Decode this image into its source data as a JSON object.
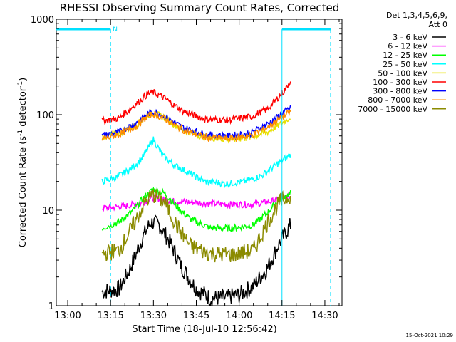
{
  "chart_data": {
    "type": "line",
    "title": "RHESSI Observing Summary Count Rates, Corrected",
    "xlabel": "Start Time (18-Jul-10 12:56:42)",
    "ylabel_parts": [
      "Corrected Count Rate (s",
      "-1",
      " detector",
      "-1",
      ")"
    ],
    "ylabel": "Corrected Count Rate (s-1 detector-1)",
    "y_scale": "log",
    "ylim": [
      1,
      1000
    ],
    "xlim": [
      "12:56",
      "14:36"
    ],
    "x_ticks": [
      "13:00",
      "13:15",
      "13:30",
      "13:45",
      "14:00",
      "14:15",
      "14:30"
    ],
    "y_ticks": [
      "1",
      "10",
      "100",
      "1000"
    ],
    "legend_header": [
      "Det 1,3,4,5,6,9,",
      "Att 0"
    ],
    "legend_position": "right",
    "series": [
      {
        "name": "3 - 6 keV",
        "color": "#000000",
        "x": [
          "13:12",
          "13:18",
          "13:22",
          "13:26",
          "13:29",
          "13:32",
          "13:36",
          "13:40",
          "13:45",
          "13:50",
          "13:55",
          "14:00",
          "14:05",
          "14:10",
          "14:14",
          "14:18"
        ],
        "y": [
          1.4,
          1.5,
          2.5,
          5,
          7.5,
          7,
          4.5,
          2.5,
          1.5,
          1.2,
          1.2,
          1.3,
          1.6,
          2.5,
          4.5,
          7
        ]
      },
      {
        "name": "6 - 12 keV",
        "color": "#ff00ff",
        "x": [
          "13:12",
          "13:20",
          "13:26",
          "13:30",
          "13:36",
          "13:45",
          "13:55",
          "14:05",
          "14:12",
          "14:18"
        ],
        "y": [
          10.5,
          11,
          12,
          13.5,
          12.5,
          12,
          11.5,
          11.5,
          12.5,
          14
        ]
      },
      {
        "name": "12 - 25 keV",
        "color": "#00ff00",
        "x": [
          "13:12",
          "13:18",
          "13:23",
          "13:27",
          "13:30",
          "13:34",
          "13:38",
          "13:43",
          "13:50",
          "13:58",
          "14:05",
          "14:10",
          "14:14",
          "14:18"
        ],
        "y": [
          6.5,
          7.5,
          10,
          14,
          16.5,
          15,
          11,
          8,
          6.5,
          6.5,
          7,
          9.5,
          13,
          15
        ]
      },
      {
        "name": "25 - 50 keV",
        "color": "#00ffff",
        "x": [
          "13:12",
          "13:17",
          "13:22",
          "13:26",
          "13:30",
          "13:33",
          "13:37",
          "13:42",
          "13:48",
          "13:55",
          "14:02",
          "14:08",
          "14:13",
          "14:18"
        ],
        "y": [
          20,
          22,
          27,
          35,
          55,
          38,
          30,
          25,
          20,
          19,
          20,
          23,
          30,
          38
        ]
      },
      {
        "name": "50 - 100 keV",
        "color": "#e8e000",
        "x": [
          "13:12",
          "13:18",
          "13:24",
          "13:28",
          "13:30",
          "13:34",
          "13:40",
          "13:48",
          "13:56",
          "14:04",
          "14:10",
          "14:16",
          "14:18"
        ],
        "y": [
          58,
          64,
          78,
          100,
          105,
          92,
          70,
          58,
          55,
          58,
          66,
          85,
          95
        ]
      },
      {
        "name": "100 - 300 keV",
        "color": "#ff0000",
        "x": [
          "13:12",
          "13:18",
          "13:24",
          "13:28",
          "13:30",
          "13:34",
          "13:40",
          "13:48",
          "13:56",
          "14:04",
          "14:10",
          "14:16",
          "14:18"
        ],
        "y": [
          86,
          92,
          130,
          165,
          172,
          148,
          110,
          90,
          88,
          95,
          115,
          180,
          230
        ]
      },
      {
        "name": "300 - 800 keV",
        "color": "#0000ff",
        "x": [
          "13:12",
          "13:18",
          "13:24",
          "13:28",
          "13:30",
          "13:34",
          "13:40",
          "13:48",
          "13:56",
          "14:04",
          "14:10",
          "14:16",
          "14:18"
        ],
        "y": [
          60,
          66,
          82,
          102,
          108,
          96,
          74,
          62,
          60,
          64,
          80,
          108,
          118
        ]
      },
      {
        "name": "800 - 7000 keV",
        "color": "#ff8c00",
        "x": [
          "13:12",
          "13:18",
          "13:24",
          "13:28",
          "13:30",
          "13:34",
          "13:40",
          "13:48",
          "13:56",
          "14:04",
          "14:10",
          "14:16",
          "14:18"
        ],
        "y": [
          56,
          62,
          76,
          96,
          102,
          90,
          70,
          58,
          56,
          60,
          74,
          98,
          108
        ]
      },
      {
        "name": "7000 - 15000 keV",
        "color": "#8b8b00",
        "x": [
          "13:12",
          "13:18",
          "13:23",
          "13:27",
          "13:30",
          "13:34",
          "13:38",
          "13:43",
          "13:50",
          "13:58",
          "14:05",
          "14:10",
          "14:14",
          "14:18"
        ],
        "y": [
          3.5,
          3.8,
          7,
          12,
          14.5,
          12,
          7,
          4.2,
          3.5,
          3.4,
          3.8,
          7.5,
          12,
          14.5
        ]
      }
    ],
    "attenuator_periods": [
      {
        "label": "N",
        "color": "#00e0ff",
        "from": "12:56",
        "to": "13:15"
      },
      {
        "label": "",
        "color": "#00e0ff",
        "from": "14:15",
        "to": "14:32"
      }
    ]
  },
  "footer": {
    "timestamp": "15-Oct-2021 10:29"
  }
}
